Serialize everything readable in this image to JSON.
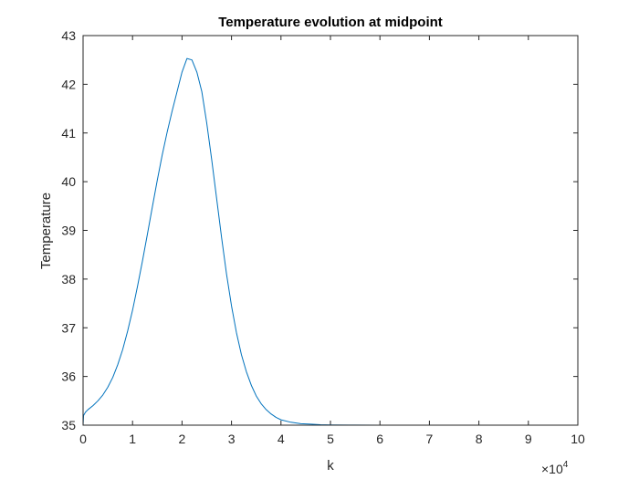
{
  "chart_data": {
    "type": "line",
    "title": "Temperature evolution at midpoint",
    "xlabel": "k",
    "ylabel": "Temperature",
    "x_exponent_label": {
      "base": "×10",
      "exponent": "4"
    },
    "xlim": [
      0,
      100000
    ],
    "ylim": [
      35,
      43
    ],
    "x_ticks": [
      0,
      10000,
      20000,
      30000,
      40000,
      50000,
      60000,
      70000,
      80000,
      90000,
      100000
    ],
    "x_tick_labels": [
      "0",
      "1",
      "2",
      "3",
      "4",
      "5",
      "6",
      "7",
      "8",
      "9",
      "10"
    ],
    "y_ticks": [
      35,
      36,
      37,
      38,
      39,
      40,
      41,
      42,
      43
    ],
    "y_tick_labels": [
      "35",
      "36",
      "37",
      "38",
      "39",
      "40",
      "41",
      "42",
      "43"
    ],
    "grid": false,
    "line_color": "#0072BD",
    "series": [
      {
        "x": [
          0,
          100,
          500,
          1000,
          2000,
          3000,
          4000,
          5000,
          6000,
          7000,
          8000,
          9000,
          10000,
          11000,
          12000,
          13000,
          14000,
          15000,
          16000,
          17000,
          18000,
          19000,
          20000,
          21000,
          22000,
          23000,
          24000,
          25000,
          26000,
          27000,
          28000,
          29000,
          30000,
          31000,
          32000,
          33000,
          34000,
          35000,
          36000,
          37000,
          38000,
          39000,
          40000,
          42000,
          44000,
          46000,
          48000,
          50000,
          55000,
          60000,
          70000,
          80000,
          90000,
          100000
        ],
        "y": [
          35.0,
          35.2,
          35.27,
          35.32,
          35.4,
          35.5,
          35.62,
          35.78,
          35.98,
          36.24,
          36.55,
          36.93,
          37.36,
          37.85,
          38.37,
          38.92,
          39.48,
          40.03,
          40.55,
          41.02,
          41.45,
          41.85,
          42.25,
          42.53,
          42.5,
          42.25,
          41.85,
          41.2,
          40.45,
          39.65,
          38.85,
          38.1,
          37.45,
          36.9,
          36.45,
          36.1,
          35.82,
          35.6,
          35.44,
          35.32,
          35.23,
          35.16,
          35.11,
          35.06,
          35.03,
          35.02,
          35.01,
          35.005,
          35.002,
          35.001,
          35.0,
          35.0,
          35.0,
          35.0
        ]
      }
    ]
  }
}
